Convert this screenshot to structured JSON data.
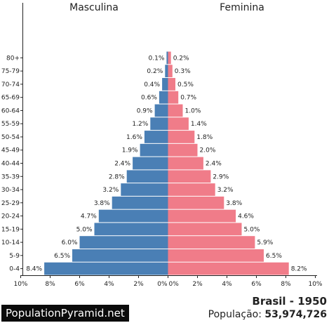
{
  "chart_data": {
    "type": "bar",
    "orientation": "horizontal-pyramid",
    "categories": [
      "0-4",
      "5-9",
      "10-14",
      "15-19",
      "20-24",
      "25-29",
      "30-34",
      "35-39",
      "40-44",
      "45-49",
      "50-54",
      "55-59",
      "60-64",
      "65-69",
      "70-74",
      "75-79",
      "80+"
    ],
    "series": [
      {
        "name": "Masculina",
        "color": "#4a7fb5",
        "values": [
          8.4,
          6.5,
          6.0,
          5.0,
          4.7,
          3.8,
          3.2,
          2.8,
          2.4,
          1.9,
          1.6,
          1.2,
          0.9,
          0.6,
          0.4,
          0.2,
          0.1
        ]
      },
      {
        "name": "Feminina",
        "color": "#f07c89",
        "values": [
          8.2,
          6.5,
          5.9,
          5.0,
          4.6,
          3.8,
          3.2,
          2.9,
          2.4,
          2.0,
          1.8,
          1.4,
          1.0,
          0.7,
          0.5,
          0.3,
          0.2
        ]
      }
    ],
    "value_labels": {
      "male": [
        "8.4%",
        "6.5%",
        "6.0%",
        "5.0%",
        "4.7%",
        "3.8%",
        "3.2%",
        "2.8%",
        "2.4%",
        "1.9%",
        "1.6%",
        "1.2%",
        "0.9%",
        "0.6%",
        "0.4%",
        "0.2%",
        "0.1%"
      ],
      "female": [
        "8.2%",
        "6.5%",
        "5.9%",
        "5.0%",
        "4.6%",
        "3.8%",
        "3.2%",
        "2.9%",
        "2.4%",
        "2.0%",
        "1.8%",
        "1.4%",
        "1.0%",
        "0.7%",
        "0.5%",
        "0.3%",
        "0.2%"
      ]
    },
    "x_ticks_left": [
      "10%",
      "8%",
      "6%",
      "4%",
      "2%",
      "0%"
    ],
    "x_ticks_right": [
      "0%",
      "2%",
      "4%",
      "6%",
      "8%",
      "10%"
    ],
    "xlim": [
      0,
      10
    ],
    "grid": false
  },
  "header": {
    "male_label": "Masculina",
    "female_label": "Feminina"
  },
  "footer": {
    "logo": "PopulationPyramid.net",
    "title": "Brasil - 1950",
    "population_label": "População:",
    "population_value": "53,974,726"
  }
}
